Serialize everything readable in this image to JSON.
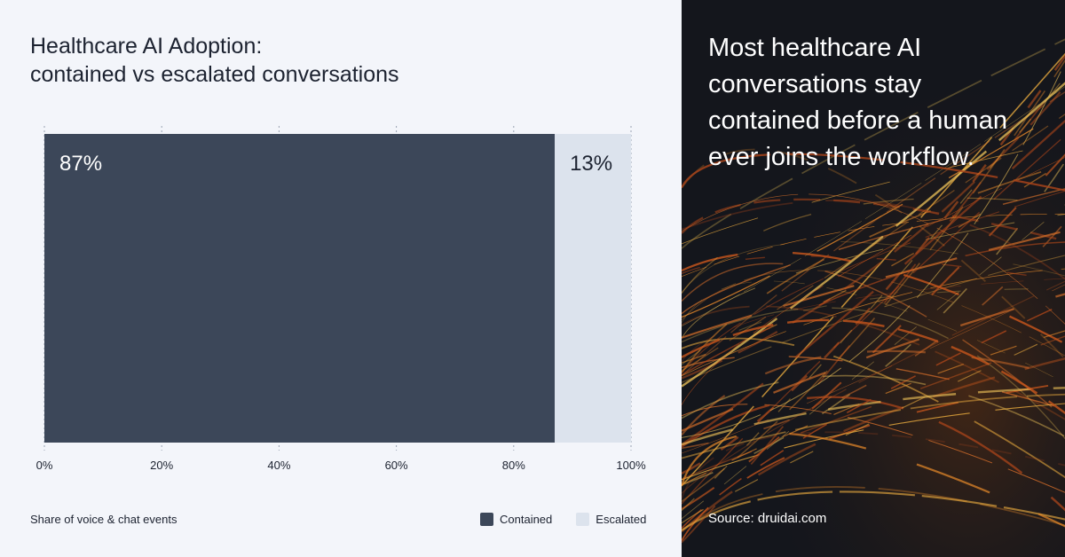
{
  "chart": {
    "title_line1": "Healthcare AI Adoption:",
    "title_line2": "contained vs escalated conversations",
    "footnote": "Share of voice & chat events"
  },
  "chart_data": {
    "type": "bar",
    "orientation": "horizontal-stacked",
    "categories": [
      ""
    ],
    "series": [
      {
        "name": "Contained",
        "values": [
          87
        ],
        "color": "#3c4759",
        "label": "87%"
      },
      {
        "name": "Escalated",
        "values": [
          13
        ],
        "color": "#dce3ed",
        "label": "13%"
      }
    ],
    "xlim": [
      0,
      100
    ],
    "x_ticks": [
      0,
      20,
      40,
      60,
      80,
      100
    ],
    "x_tick_labels": [
      "0%",
      "20%",
      "40%",
      "60%",
      "80%",
      "100%"
    ],
    "grid": "vertical dotted",
    "legend_position": "bottom-right"
  },
  "panel": {
    "headline_line1": "Most healthcare AI",
    "headline_line2": "conversations stay",
    "headline_line3": "contained before a human",
    "headline_line4": "ever joins the workflow.",
    "source": "Source: druidai.com"
  },
  "colors": {
    "left_background": "#f3f5fa",
    "right_background": "#14161c",
    "contained": "#3c4759",
    "escalated": "#dce3ed",
    "accent_streaks": "#e88a2a"
  }
}
